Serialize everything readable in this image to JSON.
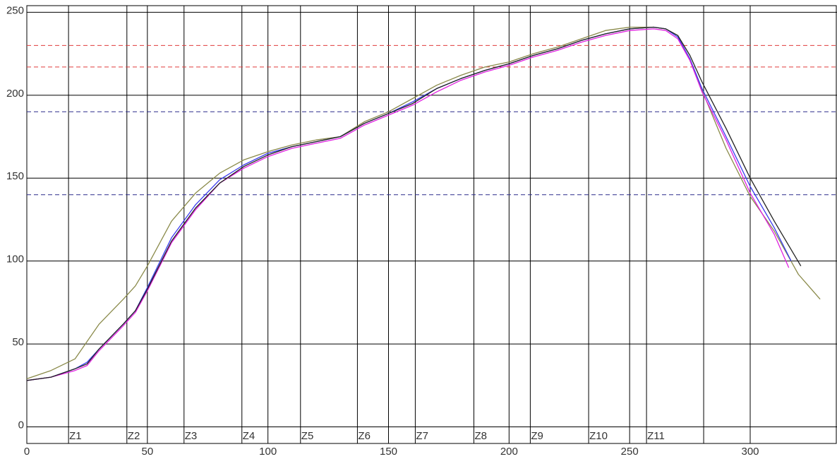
{
  "chart_data": {
    "type": "line",
    "xlim": [
      0,
      336
    ],
    "ylim": [
      -10,
      254
    ],
    "xticks": [
      0,
      50,
      100,
      150,
      200,
      250,
      300
    ],
    "yticks": [
      0,
      50,
      100,
      150,
      200,
      250
    ],
    "grid": true,
    "zone_lines": [
      17.3,
      41.5,
      65.2,
      89.2,
      113.5,
      137.1,
      161.1,
      185.4,
      208.8,
      233,
      257,
      280.7
    ],
    "zone_labels": [
      "Z1",
      "Z2",
      "Z3",
      "Z4",
      "Z5",
      "Z6",
      "Z7",
      "Z8",
      "Z9",
      "Z10",
      "Z11"
    ],
    "reference_lines": [
      {
        "value": 230,
        "color": "#e03c3c"
      },
      {
        "value": 217,
        "color": "#e03c3c"
      },
      {
        "value": 190,
        "color": "#2a2a8a"
      },
      {
        "value": 140,
        "color": "#2a2a8a"
      }
    ],
    "series": [
      {
        "color": "#8a8a4a",
        "x": [
          0,
          10,
          20,
          30,
          40,
          45,
          50,
          60,
          70,
          80,
          90,
          100,
          110,
          120,
          130,
          140,
          150,
          160,
          170,
          180,
          190,
          200,
          210,
          220,
          230,
          240,
          250,
          260,
          265,
          270,
          275,
          280,
          290,
          300,
          310,
          320,
          329
        ],
        "values": [
          29,
          34,
          41,
          62,
          77,
          85,
          97,
          124,
          141,
          153,
          161,
          166,
          170,
          173,
          175,
          184,
          190,
          198,
          206,
          212,
          217,
          220,
          225,
          229,
          234,
          239,
          241,
          241,
          240,
          236,
          221,
          203,
          168,
          139,
          118,
          92,
          77
        ]
      },
      {
        "color": "#3a3aee",
        "x": [
          0,
          10,
          20,
          25,
          30,
          40,
          45,
          50,
          60,
          70,
          80,
          90,
          100,
          110,
          120,
          130,
          140,
          150,
          160,
          170,
          180,
          190,
          200,
          210,
          220,
          230,
          240,
          250,
          260,
          265,
          270,
          275,
          280,
          290,
          300,
          310,
          317
        ],
        "values": [
          28,
          30,
          35,
          39,
          47,
          62,
          70,
          84,
          114,
          134,
          149,
          158,
          165,
          169,
          172,
          175,
          183,
          189,
          196,
          204,
          210,
          215,
          219,
          224,
          228,
          233,
          237,
          240,
          241,
          240,
          235,
          222,
          204,
          175,
          145,
          120,
          100
        ]
      },
      {
        "color": "#e020e0",
        "x": [
          0,
          10,
          20,
          25,
          30,
          40,
          45,
          50,
          60,
          70,
          80,
          90,
          100,
          110,
          120,
          130,
          140,
          150,
          160,
          170,
          180,
          190,
          200,
          210,
          220,
          230,
          240,
          250,
          260,
          265,
          270,
          275,
          280,
          290,
          300,
          310,
          316
        ],
        "values": [
          28,
          30,
          34,
          37,
          46,
          61,
          69,
          82,
          111,
          131,
          147,
          156,
          163,
          168,
          171,
          174,
          182,
          188,
          194,
          202,
          209,
          214,
          218,
          223,
          227,
          232,
          236,
          239,
          240,
          239,
          234,
          221,
          202,
          173,
          141,
          116,
          96
        ]
      },
      {
        "color": "#222222",
        "x": [
          0,
          10,
          20,
          25,
          30,
          40,
          45,
          50,
          60,
          70,
          80,
          90,
          100,
          110,
          120,
          130,
          140,
          150,
          160,
          170,
          180,
          190,
          200,
          210,
          220,
          230,
          240,
          250,
          260,
          265,
          270,
          275,
          280,
          290,
          300,
          310,
          321
        ],
        "values": [
          28,
          30,
          35,
          38,
          47,
          62,
          70,
          83,
          112,
          132,
          147,
          157,
          164,
          169,
          172,
          175,
          183,
          189,
          195,
          204,
          210,
          215,
          219,
          224,
          228,
          233,
          237,
          240,
          241,
          240,
          236,
          224,
          208,
          180,
          150,
          124,
          97
        ]
      }
    ]
  }
}
